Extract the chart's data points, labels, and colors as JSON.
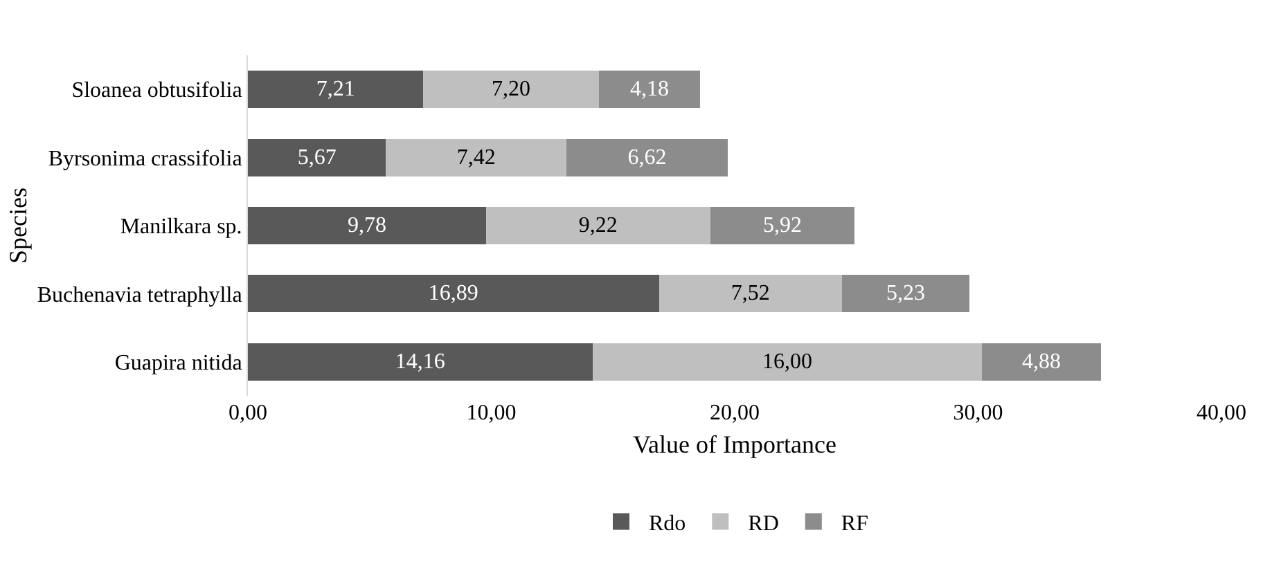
{
  "chart_data": {
    "type": "bar",
    "orientation": "horizontal",
    "stacked": true,
    "xlabel": "Value of Importance",
    "ylabel": "Species",
    "categories": [
      "Sloanea obtusifolia",
      "Byrsonima crassifolia",
      "Manilkara sp.",
      "Buchenavia tetraphylla",
      "Guapira nitida"
    ],
    "series": [
      {
        "name": "Rdo",
        "color": "#595959",
        "values": [
          7.21,
          5.67,
          9.78,
          16.89,
          14.16
        ],
        "value_labels": [
          "7,21",
          "5,67",
          "9,78",
          "16,89",
          "14,16"
        ]
      },
      {
        "name": "RD",
        "color": "#bfbfbf",
        "values": [
          7.2,
          7.42,
          9.22,
          7.52,
          16.0
        ],
        "value_labels": [
          "7,20",
          "7,42",
          "9,22",
          "7,52",
          "16,00"
        ]
      },
      {
        "name": "RF",
        "color": "#8c8c8c",
        "values": [
          4.18,
          6.62,
          5.92,
          5.23,
          4.88
        ],
        "value_labels": [
          "4,18",
          "6,62",
          "5,92",
          "5,23",
          "4,88"
        ]
      }
    ],
    "xlim": [
      0,
      40
    ],
    "xticks": [
      {
        "value": 0,
        "label": "0,00"
      },
      {
        "value": 10,
        "label": "10,00"
      },
      {
        "value": 20,
        "label": "20,00"
      },
      {
        "value": 30,
        "label": "30,00"
      },
      {
        "value": 40,
        "label": "40,00"
      }
    ],
    "grid": false,
    "legend": "bottom"
  }
}
